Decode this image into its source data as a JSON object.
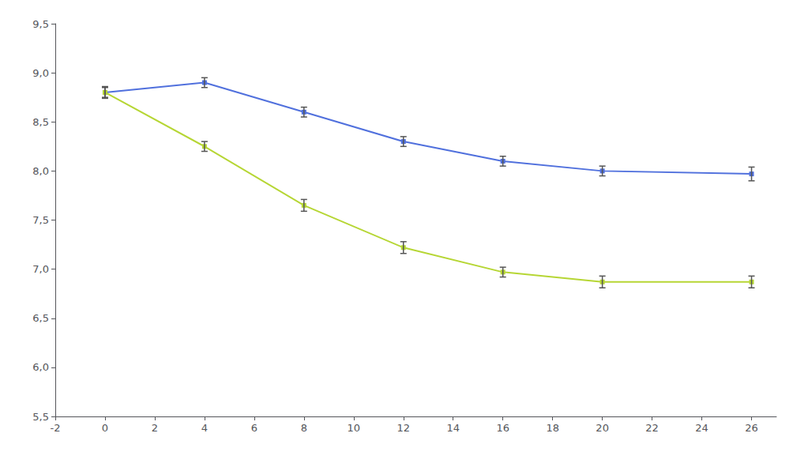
{
  "chart_data": {
    "type": "line",
    "x": [
      0,
      4,
      8,
      12,
      16,
      20,
      26
    ],
    "series": [
      {
        "values": [
          8.8,
          8.9,
          8.6,
          8.3,
          8.1,
          8.0,
          7.97
        ],
        "error": [
          0.05,
          0.05,
          0.05,
          0.05,
          0.05,
          0.05,
          0.07
        ]
      },
      {
        "values": [
          8.8,
          8.25,
          7.65,
          7.22,
          6.97,
          6.87,
          6.87
        ],
        "error": [
          0.06,
          0.05,
          0.06,
          0.06,
          0.05,
          0.06,
          0.06
        ]
      }
    ],
    "xlim": [
      -2,
      27
    ],
    "ylim": [
      5.5,
      9.5
    ],
    "xticks": [
      -2,
      0,
      2,
      4,
      6,
      8,
      10,
      12,
      14,
      16,
      18,
      20,
      22,
      24,
      26
    ],
    "yticks": [
      {
        "value": 5.5,
        "label": "5,5"
      },
      {
        "value": 6.0,
        "label": "6,0"
      },
      {
        "value": 6.5,
        "label": "6,5"
      },
      {
        "value": 7.0,
        "label": "7,0"
      },
      {
        "value": 7.5,
        "label": "7,5"
      },
      {
        "value": 8.0,
        "label": "8,0"
      },
      {
        "value": 8.5,
        "label": "8,5"
      },
      {
        "value": 9.0,
        "label": "9,0"
      },
      {
        "value": 9.5,
        "label": "9,5"
      }
    ],
    "grid": false,
    "marker": "square"
  }
}
